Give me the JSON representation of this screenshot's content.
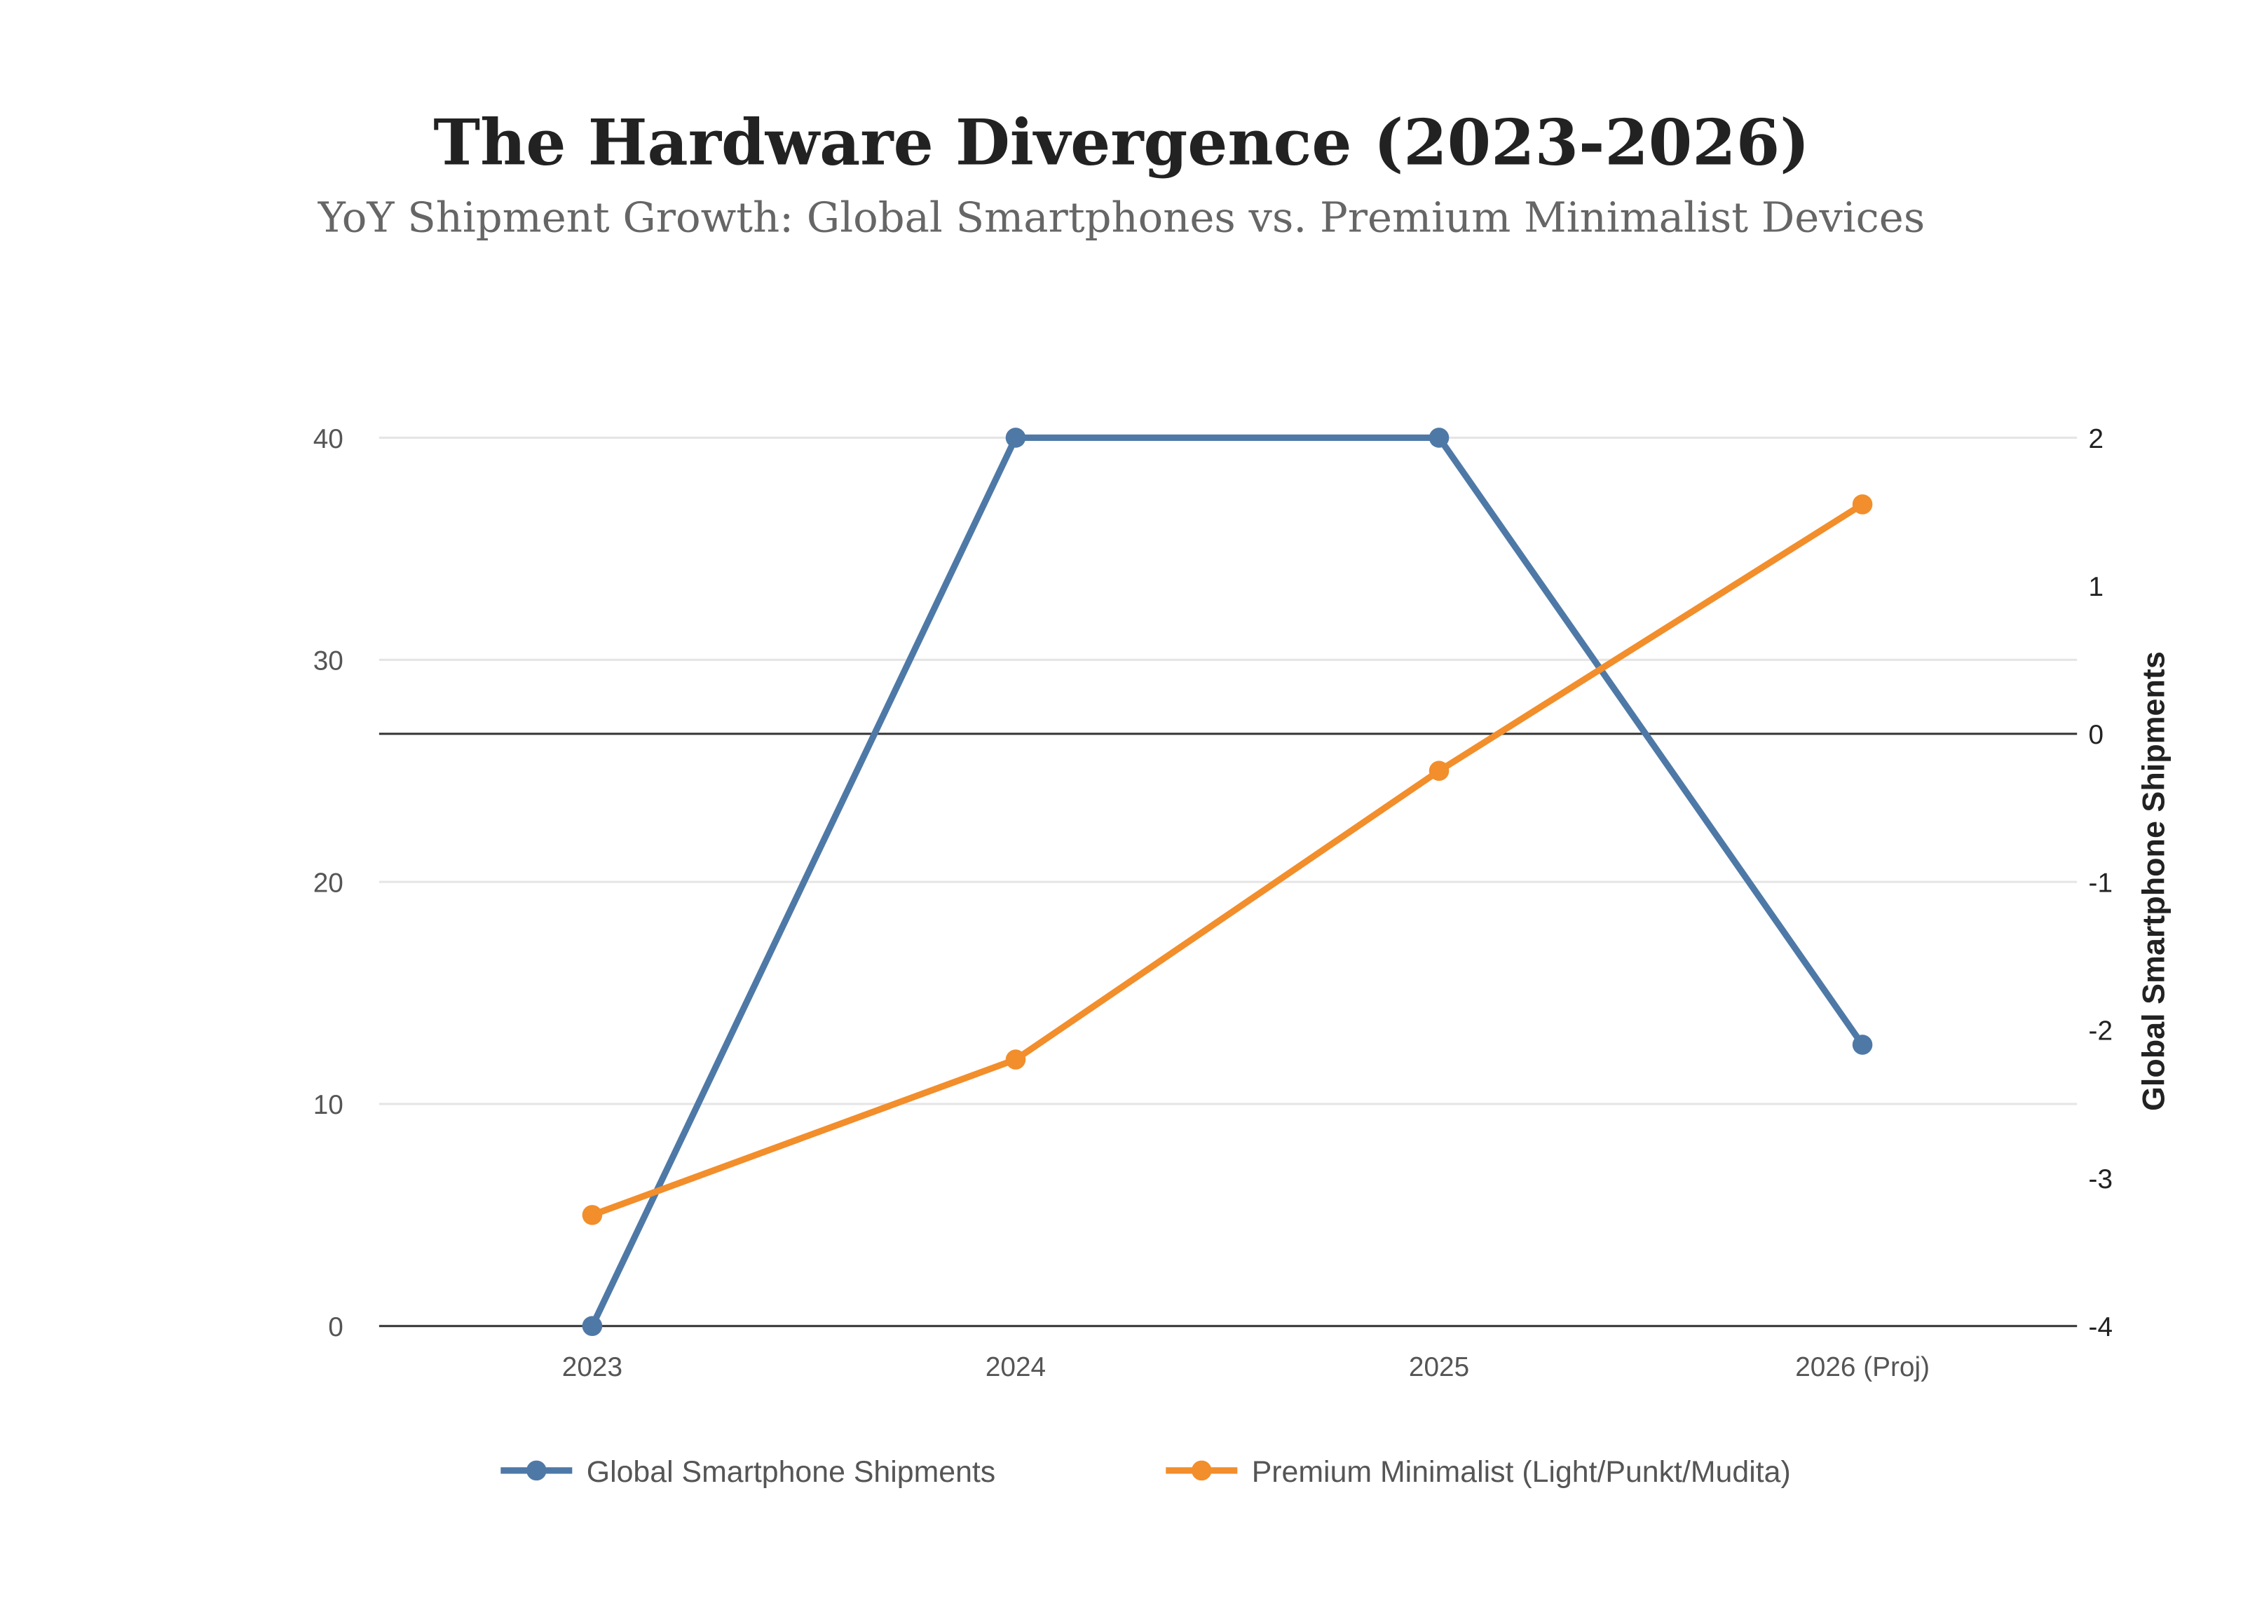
{
  "chart_data": {
    "type": "line",
    "title": "The Hardware Divergence (2023-2026)",
    "subtitle": "YoY Shipment Growth: Global Smartphones vs. Premium Minimalist Devices",
    "categories": [
      "2023",
      "2024",
      "2025",
      "2026 (Proj)"
    ],
    "y_left": {
      "label": "",
      "range": [
        0,
        40
      ],
      "ticks": [
        "0",
        "10",
        "20",
        "30",
        "40"
      ]
    },
    "y_right": {
      "label": "Global Smartphone Shipments",
      "range": [
        -4,
        2
      ],
      "ticks": [
        "-4",
        "-3",
        "-2",
        "-1",
        "0",
        "1",
        "2"
      ]
    },
    "grid": true,
    "legend_placement": "bottom",
    "series": [
      {
        "name": "Global Smartphone Shipments",
        "axis": "right",
        "color": "#4e79a7",
        "values": [
          -4,
          2,
          2,
          -2.1
        ]
      },
      {
        "name": "Premium Minimalist (Light/Punkt/Mudita)",
        "axis": "left",
        "color": "#f28e2b",
        "values": [
          5,
          12,
          25,
          37
        ]
      }
    ]
  }
}
